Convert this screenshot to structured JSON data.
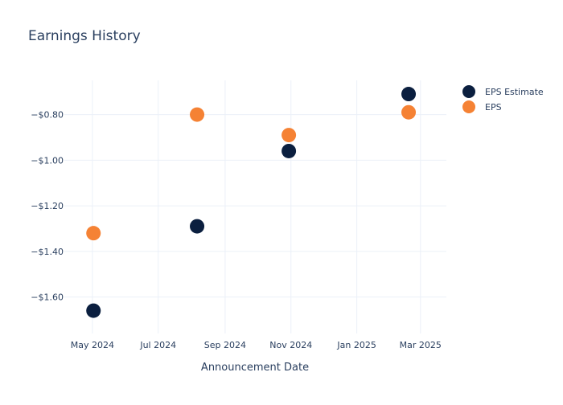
{
  "chart_data": {
    "type": "scatter",
    "title": "Earnings History",
    "xlabel": "Announcement Date",
    "ylabel": "",
    "x_range": [
      "2024-04-05",
      "2025-03-25"
    ],
    "ylim": [
      -1.76,
      -0.65
    ],
    "x_ticks": [
      {
        "date": "2024-05-01",
        "label": "May 2024"
      },
      {
        "date": "2024-07-01",
        "label": "Jul 2024"
      },
      {
        "date": "2024-09-01",
        "label": "Sep 2024"
      },
      {
        "date": "2024-11-01",
        "label": "Nov 2024"
      },
      {
        "date": "2025-01-01",
        "label": "Jan 2025"
      },
      {
        "date": "2025-03-01",
        "label": "Mar 2025"
      }
    ],
    "y_ticks": [
      {
        "value": -0.8,
        "label": "−$0.80"
      },
      {
        "value": -1.0,
        "label": "−$1.00"
      },
      {
        "value": -1.2,
        "label": "−$1.20"
      },
      {
        "value": -1.4,
        "label": "−$1.40"
      },
      {
        "value": -1.6,
        "label": "−$1.60"
      }
    ],
    "grid": true,
    "legend_position": "top-right",
    "series": [
      {
        "name": "EPS Estimate",
        "color": "#0b1f3f",
        "points": [
          {
            "x": "2024-05-02",
            "y": -1.66
          },
          {
            "x": "2024-08-06",
            "y": -1.29
          },
          {
            "x": "2024-10-30",
            "y": -0.96
          },
          {
            "x": "2025-02-18",
            "y": -0.71
          }
        ]
      },
      {
        "name": "EPS",
        "color": "#f58234",
        "points": [
          {
            "x": "2024-05-02",
            "y": -1.32
          },
          {
            "x": "2024-08-06",
            "y": -0.8
          },
          {
            "x": "2024-10-30",
            "y": -0.89
          },
          {
            "x": "2025-02-18",
            "y": -0.79
          }
        ]
      }
    ]
  }
}
